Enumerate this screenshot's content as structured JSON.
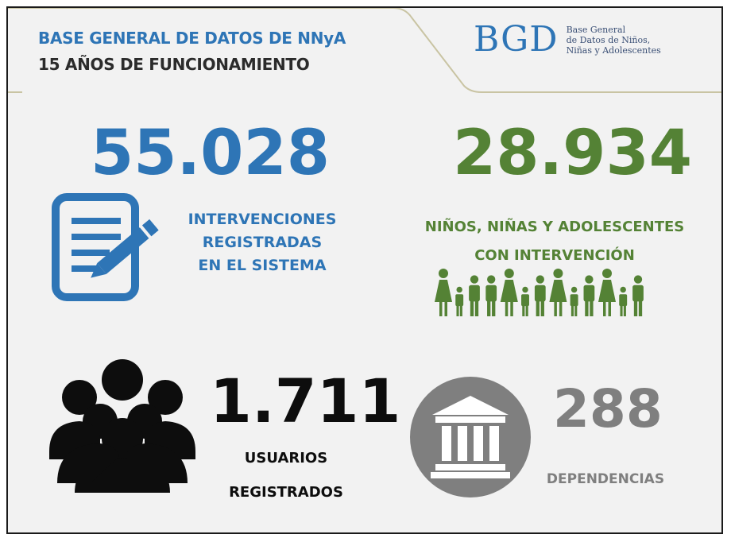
{
  "header": {
    "title_line1": "BASE GENERAL DE DATOS DE NNyA",
    "title_line2": "15 AÑOS DE FUNCIONAMIENTO"
  },
  "logo": {
    "mark": "BGD",
    "text_line1": "Base General",
    "text_line2": "de Datos de Niños,",
    "text_line3": "Niñas y Adolescentes"
  },
  "stats": {
    "interventions": {
      "value": "55.028",
      "label_line1": "INTERVENCIONES",
      "label_line2": "REGISTRADAS",
      "label_line3": "EN EL SISTEMA",
      "icon": "document-pencil-icon",
      "color": "#2e75b6"
    },
    "children": {
      "value": "28.934",
      "label_line1": "NIÑOS, NIÑAS Y ADOLESCENTES",
      "label_line2": "CON INTERVENCIÓN",
      "icon": "people-row-icon",
      "color": "#548235"
    },
    "users": {
      "value": "1.711",
      "label_line1": "USUARIOS",
      "label_line2": "REGISTRADOS",
      "icon": "user-group-icon",
      "color": "#0d0d0d"
    },
    "departments": {
      "value": "288",
      "label_line1": "DEPENDENCIAS",
      "icon": "institution-building-icon",
      "color": "#7f7f7f"
    }
  }
}
